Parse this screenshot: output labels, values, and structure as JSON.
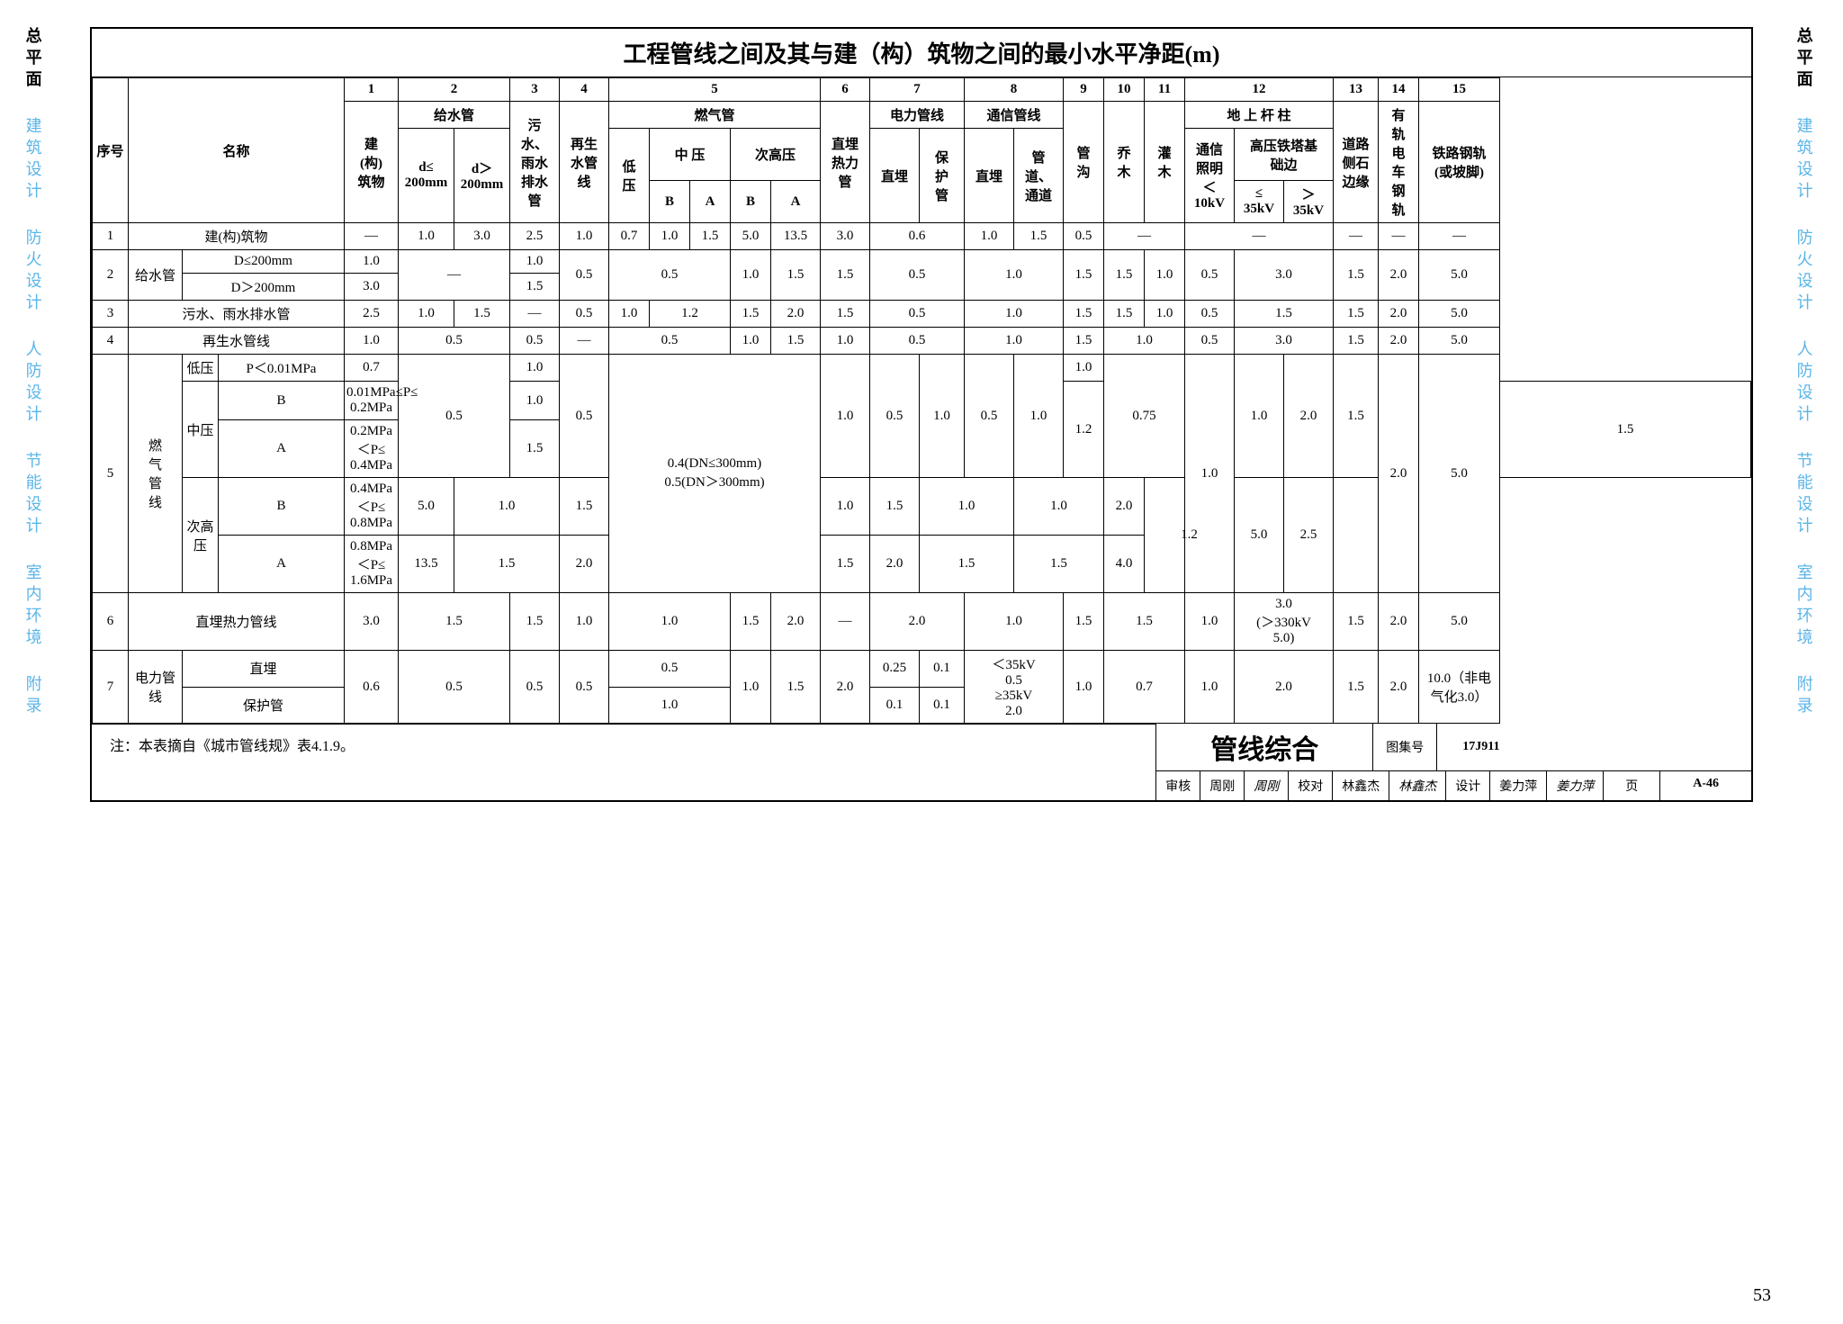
{
  "title": "工程管线之间及其与建（构）筑物之间的最小水平净距(m)",
  "sidebar": {
    "items": [
      "总平面",
      "建筑设计",
      "防火设计",
      "人防设计",
      "节能设计",
      "室内环境",
      "附录"
    ],
    "active_index": 0
  },
  "header": {
    "xuhao": "序号",
    "mingcheng": "名称",
    "col_numbers": [
      "1",
      "2",
      "3",
      "4",
      "5",
      "6",
      "7",
      "8",
      "9",
      "10",
      "11",
      "12",
      "13",
      "14",
      "15"
    ],
    "col1": "建\n(构)\n筑物",
    "geishui": "给水管",
    "geishui_a": "d≤\n200mm",
    "geishui_b": "d＞\n200mm",
    "wushui": "污\n水、\n雨水\n排水\n管",
    "zaisheng": "再生\n水管\n线",
    "ranqi": "燃气管",
    "diya": "低\n压",
    "zhongya": "中 压",
    "cigaoya": "次高压",
    "B": "B",
    "A": "A",
    "zhimai_reli": "直埋\n热力\n管",
    "dianli": "电力管线",
    "zhimai": "直埋",
    "baohu": "保\n护\n管",
    "tongxin": "通信管线",
    "guandao": "管\n道、\n通道",
    "guangou": "管\n沟",
    "qiaomu": "乔\n木",
    "guanmu": "灌\n木",
    "dishang": "地 上 杆 柱",
    "txzm": "通信\n照明\n＜\n10kV",
    "gaoyatieta": "高压铁塔基\n础边",
    "lte35": "≤\n35kV",
    "gt35": "＞\n35kV",
    "daolu": "道路\n侧石\n边缘",
    "yougui": "有\n轨\n电\n车\n钢\n轨",
    "tielu": "铁路钢轨\n(或坡脚)"
  },
  "rows": [
    {
      "n": "1",
      "name": "建(构)筑物",
      "c": [
        "—",
        "1.0",
        "3.0",
        "2.5",
        "1.0",
        "0.7",
        "1.0",
        "1.5",
        "5.0",
        "13.5",
        "3.0",
        "0.6",
        "",
        "1.0",
        "1.5",
        "0.5",
        "—",
        "",
        "—",
        "",
        "",
        "—",
        "—",
        "—"
      ]
    },
    {
      "n": "2",
      "name_a": "给水管",
      "name_b1": "D≤200mm",
      "name_b2": "D＞200mm",
      "r1": [
        "1.0",
        "—",
        "",
        "1.0",
        "0.5",
        "0.5",
        "",
        "",
        "1.0",
        "1.5",
        "1.5",
        "0.5",
        "",
        "1.0",
        "",
        "1.5",
        "1.5",
        "1.0",
        "0.5",
        "3.0",
        "",
        "1.5",
        "2.0",
        "5.0"
      ],
      "r2": [
        "3.0",
        "",
        "",
        "1.5",
        "",
        "",
        "",
        "",
        "",
        "",
        "",
        "",
        "",
        "",
        "",
        "",
        "",
        "",
        "",
        "",
        "",
        "",
        "",
        ""
      ]
    },
    {
      "n": "3",
      "name": "污水、雨水排水管",
      "c": [
        "2.5",
        "1.0",
        "1.5",
        "—",
        "0.5",
        "1.0",
        "1.2",
        "",
        "1.5",
        "2.0",
        "1.5",
        "0.5",
        "",
        "1.0",
        "",
        "1.5",
        "1.5",
        "1.0",
        "0.5",
        "1.5",
        "",
        "1.5",
        "2.0",
        "5.0"
      ]
    },
    {
      "n": "4",
      "name": "再生水管线",
      "c": [
        "1.0",
        "0.5",
        "",
        "0.5",
        "—",
        "0.5",
        "",
        "",
        "1.0",
        "1.5",
        "1.0",
        "0.5",
        "",
        "1.0",
        "",
        "1.5",
        "1.0",
        "",
        "0.5",
        "3.0",
        "",
        "1.5",
        "2.0",
        "5.0"
      ]
    }
  ],
  "row5": {
    "n": "5",
    "main": "燃\n气\n管\n线",
    "sub1": {
      "a": "低压",
      "b": "P＜0.01MPa",
      "c": [
        "0.7",
        "",
        "",
        "1.0",
        "",
        "",
        "",
        "",
        "",
        "",
        "",
        "",
        "",
        "",
        "",
        "1.0",
        "",
        "",
        "",
        "",
        "",
        "",
        "",
        ""
      ]
    },
    "sub2": {
      "a": "中压",
      "bB": "B",
      "b": "0.01MPa≤P≤\n0.2MPa",
      "c": [
        "1.0",
        "0.5",
        "",
        "1.2",
        "0.5",
        "0.4(DN≤300mm)\n0.5(DN＞300mm)",
        "",
        "",
        "",
        "",
        "1.0",
        "0.5",
        "1.0",
        "0.5",
        "1.0",
        "1.5",
        "0.75",
        "",
        "1.0",
        "1.0",
        "",
        "2.0",
        "1.5",
        "5.0"
      ]
    },
    "sub3": {
      "bA": "A",
      "b": "0.2MPa＜P≤\n0.4MPa",
      "c": [
        "1.5",
        "",
        "",
        "",
        "",
        "",
        "",
        "",
        "",
        "",
        "",
        "",
        "",
        "",
        "",
        "",
        "",
        "",
        "",
        "",
        "",
        "",
        "2.0",
        ""
      ]
    },
    "sub4": {
      "a": "次高\n压",
      "bB": "B",
      "b": "0.4MPa＜P≤\n0.8MPa",
      "c": [
        "5.0",
        "1.0",
        "",
        "1.5",
        "1.0",
        "",
        "",
        "",
        "",
        "",
        "1.5",
        "1.0",
        "",
        "1.0",
        "",
        "2.0",
        "1.2",
        "",
        "",
        "",
        "5.0",
        "2.5",
        "",
        ""
      ]
    },
    "sub5": {
      "bA": "A",
      "b": "0.8MPa＜P≤\n1.6MPa",
      "c": [
        "13.5",
        "1.5",
        "",
        "2.0",
        "1.5",
        "",
        "",
        "",
        "",
        "",
        "2.0",
        "1.5",
        "",
        "1.5",
        "",
        "4.0",
        "",
        "",
        "",
        "",
        "",
        "",
        "",
        ""
      ]
    }
  },
  "row6": {
    "n": "6",
    "name": "直埋热力管线",
    "c": [
      "3.0",
      "1.5",
      "",
      "1.5",
      "1.0",
      "1.0",
      "",
      "",
      "1.5",
      "2.0",
      "—",
      "2.0",
      "",
      "1.0",
      "",
      "1.5",
      "1.5",
      "",
      "1.0",
      "3.0\n(＞330kV\n5.0)",
      "",
      "1.5",
      "2.0",
      "5.0"
    ]
  },
  "row7": {
    "n": "7",
    "name_a": "电力管线",
    "name_b1": "直埋",
    "name_b2": "保护管",
    "r1": [
      "0.6",
      "0.5",
      "",
      "0.5",
      "0.5",
      "0.5",
      "",
      "",
      "1.0",
      "1.5",
      "2.0",
      "0.25",
      "0.1",
      "＜35kV\n0.5\n≥35kV\n2.0",
      "",
      "1.0",
      "0.7",
      "",
      "1.0",
      "2.0",
      "",
      "1.5",
      "2.0",
      "10.0（非电\n气化3.0）"
    ],
    "r2": [
      "",
      "",
      "",
      "",
      "",
      "1.0",
      "",
      "",
      "",
      "",
      "",
      "0.1",
      "0.1",
      "",
      "",
      "",
      "",
      "",
      "",
      "",
      "",
      "",
      "",
      ""
    ]
  },
  "note": "注：本表摘自《城市管线规》表4.1.9。",
  "footer": {
    "big_title": "管线综合",
    "tuji_label": "图集号",
    "tuji_val": "17J911",
    "shenhe": "审核",
    "shenhe_name": "周刚",
    "shenhe_sig": "周刚",
    "jiaodui": "校对",
    "jiaodui_name": "林鑫杰",
    "jiaodui_sig": "林鑫杰",
    "sheji": "设计",
    "sheji_name": "姜力萍",
    "sheji_sig": "姜力萍",
    "ye_label": "页",
    "ye_val": "A-46"
  },
  "page_number": "53",
  "colors": {
    "text": "#000000",
    "border": "#000000",
    "sidebar_inactive": "#5bb5e8",
    "background": "#ffffff"
  }
}
